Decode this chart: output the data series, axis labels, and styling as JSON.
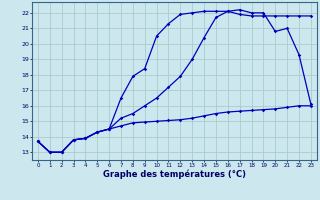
{
  "background_color": "#cce8ee",
  "grid_color": "#aacccc",
  "line_color": "#0000bb",
  "title": "Graphe des températures (°C)",
  "xlim": [
    -0.5,
    23.5
  ],
  "ylim": [
    12.5,
    22.7
  ],
  "yticks": [
    13,
    14,
    15,
    16,
    17,
    18,
    19,
    20,
    21,
    22
  ],
  "xticks": [
    0,
    1,
    2,
    3,
    4,
    5,
    6,
    7,
    8,
    9,
    10,
    11,
    12,
    13,
    14,
    15,
    16,
    17,
    18,
    19,
    20,
    21,
    22,
    23
  ],
  "series1_x": [
    0,
    1,
    2,
    3,
    4,
    5,
    6,
    7,
    8,
    9,
    10,
    11,
    12,
    13,
    14,
    15,
    16,
    17,
    18,
    19,
    20,
    21,
    22,
    23
  ],
  "series1_y": [
    13.7,
    13.0,
    13.0,
    13.8,
    13.9,
    14.3,
    14.5,
    16.5,
    17.9,
    18.4,
    20.5,
    21.3,
    21.9,
    22.0,
    22.1,
    22.1,
    22.1,
    21.9,
    21.8,
    21.8,
    21.8,
    21.8,
    21.8,
    21.8
  ],
  "series2_x": [
    0,
    1,
    2,
    3,
    4,
    5,
    6,
    7,
    8,
    9,
    10,
    11,
    12,
    13,
    14,
    15,
    16,
    17,
    18,
    19,
    20,
    21,
    22,
    23
  ],
  "series2_y": [
    13.7,
    13.0,
    13.0,
    13.8,
    13.9,
    14.3,
    14.5,
    15.2,
    15.5,
    16.0,
    16.5,
    17.2,
    17.9,
    19.0,
    20.4,
    21.7,
    22.1,
    22.2,
    22.0,
    22.0,
    20.8,
    21.0,
    19.3,
    16.1
  ],
  "series3_x": [
    0,
    1,
    2,
    3,
    4,
    5,
    6,
    7,
    8,
    9,
    10,
    11,
    12,
    13,
    14,
    15,
    16,
    17,
    18,
    19,
    20,
    21,
    22,
    23
  ],
  "series3_y": [
    13.7,
    13.0,
    13.0,
    13.8,
    13.9,
    14.3,
    14.5,
    14.7,
    14.9,
    14.95,
    15.0,
    15.05,
    15.1,
    15.2,
    15.35,
    15.5,
    15.6,
    15.65,
    15.7,
    15.75,
    15.8,
    15.9,
    16.0,
    16.0
  ]
}
